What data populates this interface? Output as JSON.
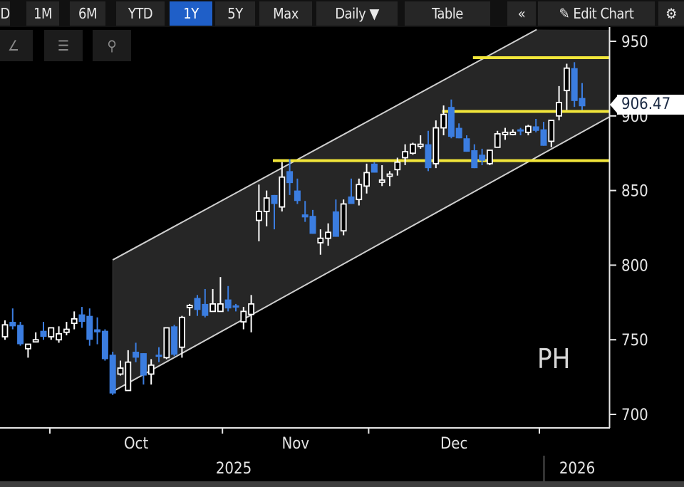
{
  "toolbar": {
    "buttons": [
      "D",
      "1M",
      "6M",
      "YTD",
      "1Y",
      "5Y",
      "Max",
      "Daily ▼",
      "Table"
    ],
    "selected": "1Y",
    "collapse_label": "«",
    "edit_chart_label": "Edit Chart",
    "edit_icon": "pencil-icon",
    "settings_icon": "gear-icon",
    "accent_color": "#1f5fc8"
  },
  "tools": {
    "items": [
      "draw-line-icon",
      "legend-icon",
      "zoom-icon"
    ]
  },
  "ticker": "PH",
  "last_price": "906.47",
  "colors": {
    "up_candle": "#ffffff",
    "down_candle": "#3b7de0",
    "channel_fill": "#262626",
    "channel_line": "#cfcfcf",
    "level_line": "#f2e63a",
    "background": "#000000"
  },
  "chart_data": {
    "type": "candlestick",
    "interval": "Daily",
    "range": "1Y",
    "y_axis": {
      "position": "right",
      "ticks": [
        700,
        750,
        800,
        850,
        900,
        950
      ],
      "ylim": [
        690,
        960
      ]
    },
    "x_axis": {
      "month_labels": [
        {
          "label": "Oct",
          "start": "2025-10-01"
        },
        {
          "label": "Nov",
          "start": "2025-11-03"
        },
        {
          "label": "Dec",
          "start": "2025-12-01"
        }
      ],
      "year_labels": [
        {
          "label": "2025"
        },
        {
          "label": "2026",
          "start": "2026-01-02"
        }
      ]
    },
    "grid": false,
    "candles_fields": [
      "date",
      "open",
      "high",
      "low",
      "close"
    ],
    "candles": [
      [
        "2025-09-23",
        752,
        763,
        750,
        760
      ],
      [
        "2025-09-24",
        762,
        771,
        757,
        759
      ],
      [
        "2025-09-25",
        760,
        762,
        746,
        747
      ],
      [
        "2025-09-26",
        744,
        747,
        738,
        747
      ],
      [
        "2025-09-29",
        749,
        755,
        749,
        750
      ],
      [
        "2025-09-30",
        756,
        762,
        750,
        752
      ],
      [
        "2025-10-01",
        752,
        758,
        750,
        758
      ],
      [
        "2025-10-02",
        750,
        759,
        748,
        754
      ],
      [
        "2025-10-03",
        755,
        762,
        753,
        757
      ],
      [
        "2025-10-06",
        761,
        769,
        757,
        764
      ],
      [
        "2025-10-07",
        767,
        772,
        758,
        762
      ],
      [
        "2025-10-08",
        766,
        771,
        746,
        750
      ],
      [
        "2025-10-09",
        757,
        765,
        747,
        755
      ],
      [
        "2025-10-10",
        756,
        757,
        736,
        737
      ],
      [
        "2025-10-13",
        740,
        742,
        713,
        714
      ],
      [
        "2025-10-14",
        727,
        736,
        726,
        731
      ],
      [
        "2025-10-15",
        716,
        743,
        716,
        735
      ],
      [
        "2025-10-16",
        742,
        748,
        735,
        738
      ],
      [
        "2025-10-17",
        741,
        741,
        720,
        726
      ],
      [
        "2025-10-20",
        727,
        737,
        720,
        733
      ],
      [
        "2025-10-21",
        740,
        745,
        735,
        739
      ],
      [
        "2025-10-22",
        738,
        758,
        737,
        758
      ],
      [
        "2025-10-23",
        759,
        760,
        739,
        740
      ],
      [
        "2025-10-24",
        745,
        766,
        738,
        765
      ],
      [
        "2025-10-27",
        772,
        774,
        766,
        773
      ],
      [
        "2025-10-28",
        778,
        780,
        766,
        770
      ],
      [
        "2025-10-29",
        774,
        784,
        765,
        766
      ],
      [
        "2025-10-30",
        769,
        784,
        769,
        774
      ],
      [
        "2025-10-31",
        769,
        792,
        769,
        774
      ],
      [
        "2025-11-03",
        777,
        786,
        769,
        771
      ],
      [
        "2025-11-04",
        773,
        774,
        769,
        772
      ],
      [
        "2025-11-05",
        762,
        772,
        757,
        769
      ],
      [
        "2025-11-06",
        767,
        780,
        755,
        774
      ],
      [
        "2025-11-07",
        830,
        854,
        816,
        836
      ],
      [
        "2025-11-10",
        836,
        850,
        826,
        845
      ],
      [
        "2025-11-11",
        847,
        847,
        824,
        841
      ],
      [
        "2025-11-12",
        839,
        869,
        836,
        859
      ],
      [
        "2025-11-13",
        863,
        871,
        847,
        855
      ],
      [
        "2025-11-14",
        850,
        858,
        841,
        843
      ],
      [
        "2025-11-17",
        834,
        843,
        829,
        832
      ],
      [
        "2025-11-18",
        833,
        837,
        821,
        821
      ],
      [
        "2025-11-19",
        815,
        824,
        807,
        818
      ],
      [
        "2025-11-20",
        818,
        828,
        813,
        822
      ],
      [
        "2025-11-21",
        836,
        844,
        819,
        819
      ],
      [
        "2025-11-24",
        823,
        844,
        820,
        841
      ],
      [
        "2025-11-25",
        846,
        858,
        841,
        841
      ],
      [
        "2025-11-26",
        844,
        858,
        840,
        854
      ],
      [
        "2025-11-28",
        853,
        868,
        848,
        862
      ],
      [
        "2025-12-01",
        868,
        869,
        862,
        862
      ],
      [
        "2025-12-02",
        856,
        867,
        853,
        857
      ],
      [
        "2025-12-03",
        860,
        863,
        853,
        861
      ],
      [
        "2025-12-04",
        864,
        872,
        860,
        869
      ],
      [
        "2025-12-05",
        872,
        881,
        867,
        876
      ],
      [
        "2025-12-08",
        875,
        882,
        874,
        881
      ],
      [
        "2025-12-09",
        880,
        887,
        878,
        881
      ],
      [
        "2025-12-10",
        881,
        890,
        863,
        865
      ],
      [
        "2025-12-11",
        868,
        897,
        865,
        892
      ],
      [
        "2025-12-12",
        892,
        907,
        887,
        901
      ],
      [
        "2025-12-15",
        906,
        911,
        885,
        886
      ],
      [
        "2025-12-16",
        892,
        895,
        885,
        885
      ],
      [
        "2025-12-17",
        885,
        887,
        876,
        876
      ],
      [
        "2025-12-18",
        877,
        881,
        865,
        865
      ],
      [
        "2025-12-19",
        874,
        878,
        867,
        870
      ],
      [
        "2025-12-22",
        868,
        877,
        867,
        877
      ],
      [
        "2025-12-23",
        879,
        890,
        879,
        888
      ],
      [
        "2025-12-24",
        888,
        892,
        884,
        889
      ],
      [
        "2025-12-26",
        888,
        891,
        887,
        889
      ],
      [
        "2025-12-29",
        891,
        892,
        887,
        890
      ],
      [
        "2025-12-30",
        889,
        894,
        887,
        893
      ],
      [
        "2025-12-31",
        893,
        898,
        889,
        890
      ],
      [
        "2026-01-02",
        891,
        896,
        880,
        880
      ],
      [
        "2026-01-05",
        883,
        897,
        879,
        897
      ],
      [
        "2026-01-06",
        900,
        920,
        897,
        909
      ],
      [
        "2026-01-07",
        917,
        935,
        904,
        932
      ],
      [
        "2026-01-08",
        932,
        936,
        906,
        910
      ],
      [
        "2026-01-09",
        912,
        922,
        904,
        906.47
      ]
    ],
    "trend_channel": {
      "upper": [
        [
          "2025-10-13",
          803.5
        ],
        [
          "2025-12-31",
          957.6
        ]
      ],
      "lower": [
        [
          "2025-10-13",
          715.3
        ],
        [
          "2026-01-09",
          889.2
        ]
      ]
    },
    "horizontal_levels": [
      {
        "value": 939,
        "from": "2025-12-18"
      },
      {
        "value": 903,
        "from": "2025-12-12"
      },
      {
        "value": 870,
        "from": "2025-11-11"
      }
    ]
  }
}
